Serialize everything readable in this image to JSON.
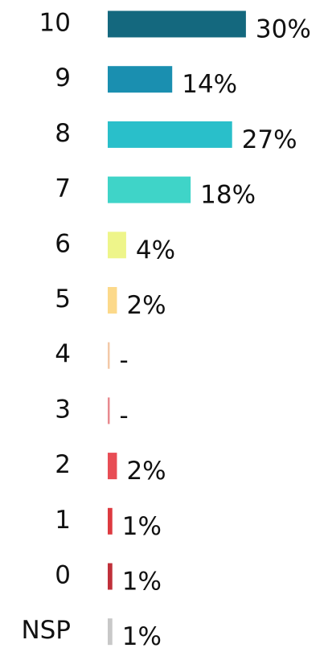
{
  "chart_data": {
    "type": "bar",
    "orientation": "horizontal",
    "categories": [
      "10",
      "9",
      "8",
      "7",
      "6",
      "5",
      "4",
      "3",
      "2",
      "1",
      "0",
      "NSP"
    ],
    "values": [
      30,
      14,
      27,
      18,
      4,
      2,
      0,
      0,
      2,
      1,
      1,
      1
    ],
    "value_labels": [
      "30%",
      "14%",
      "27%",
      "18%",
      "4%",
      "2%",
      "-",
      "-",
      "2%",
      "1%",
      "1%",
      "1%"
    ],
    "colors": [
      "#14687e",
      "#1a8fb0",
      "#29bfca",
      "#3fd4c8",
      "#eef58a",
      "#fcd98a",
      "#f3c9a8",
      "#e88a8f",
      "#e84d55",
      "#dd3a40",
      "#c0303a",
      "#c8c8c8"
    ]
  }
}
